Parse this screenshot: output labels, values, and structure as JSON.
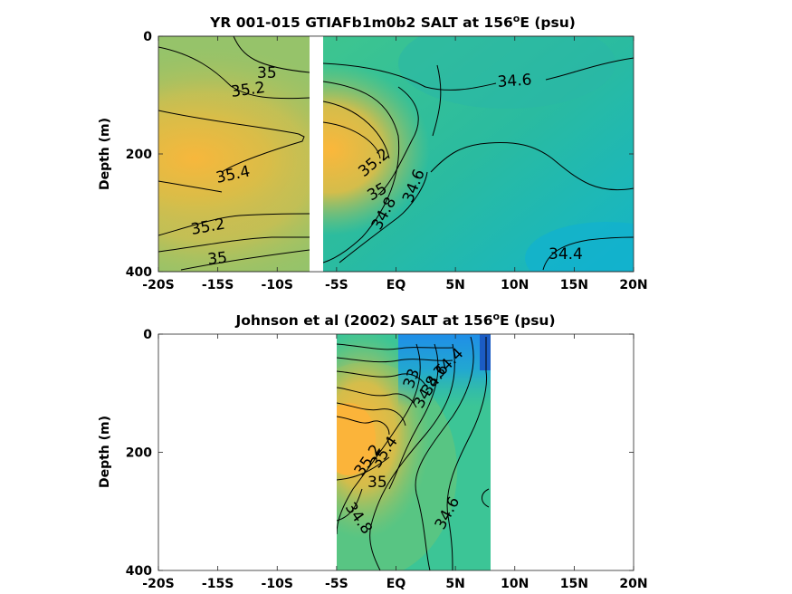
{
  "chart_data": [
    {
      "type": "contour",
      "title": "YR 001-015 GTIAFb1m0b2 SALT at 156",
      "title_sup": "o",
      "title_tail": "E (psu)",
      "ylabel": "Depth (m)",
      "xticks": [
        "-20S",
        "-15S",
        "-10S",
        "-5S",
        "EQ",
        "5N",
        "10N",
        "15N",
        "20N"
      ],
      "xtick_values": [
        -20,
        -15,
        -10,
        -5,
        0,
        5,
        10,
        15,
        20
      ],
      "yticks": [
        "0",
        "200",
        "400"
      ],
      "ytick_values": [
        0,
        200,
        400
      ],
      "xlim": [
        -20,
        20
      ],
      "ylim": [
        400,
        0
      ],
      "gap": [
        -7.2,
        -6.5
      ],
      "contour_labels": [
        {
          "text": "35",
          "x": -17.8,
          "y": 60
        },
        {
          "text": "35.2",
          "x": -18.1,
          "y": 90
        },
        {
          "text": "35.4",
          "x": -18.5,
          "y": 230
        },
        {
          "text": "35.2",
          "x": -16.8,
          "y": 320
        },
        {
          "text": "35",
          "x": -15.8,
          "y": 375
        },
        {
          "text": "34.6",
          "x": 9.1,
          "y": 75
        },
        {
          "text": "35.2",
          "x": -2.5,
          "y": 215
        },
        {
          "text": "35",
          "x": -1.2,
          "y": 262
        },
        {
          "text": "34.8",
          "x": -1.5,
          "y": 305
        },
        {
          "text": "34.6",
          "x": 2.2,
          "y": 262
        },
        {
          "text": "34.4",
          "x": 15.6,
          "y": 360
        }
      ]
    },
    {
      "type": "contour",
      "title": "Johnson et al (2002) SALT at 156",
      "title_sup": "o",
      "title_tail": "E (psu)",
      "ylabel": "Depth (m)",
      "xticks": [
        "-20S",
        "-15S",
        "-10S",
        "-5S",
        "EQ",
        "5N",
        "10N",
        "15N",
        "20N"
      ],
      "xtick_values": [
        -20,
        -15,
        -10,
        -5,
        0,
        5,
        10,
        15,
        20
      ],
      "yticks": [
        "0",
        "200",
        "400"
      ],
      "ytick_values": [
        0,
        200,
        400
      ],
      "xlim": [
        -20,
        20
      ],
      "ylim": [
        400,
        0
      ],
      "data_extent": [
        -5,
        8
      ],
      "contour_labels": [
        {
          "text": "34.4",
          "x": 4.9,
          "y": 65
        },
        {
          "text": "34.6",
          "x": 4.2,
          "y": 95
        },
        {
          "text": "34.8",
          "x": 3.5,
          "y": 118
        },
        {
          "text": "33",
          "x": 2.3,
          "y": 80
        },
        {
          "text": "35.4",
          "x": -1.6,
          "y": 220
        },
        {
          "text": "35.2",
          "x": -2.4,
          "y": 242
        },
        {
          "text": "35",
          "x": -1.5,
          "y": 258
        },
        {
          "text": "34.6",
          "x": 4.6,
          "y": 330
        },
        {
          "text": "34.8",
          "x": -3.2,
          "y": 345
        }
      ]
    }
  ]
}
